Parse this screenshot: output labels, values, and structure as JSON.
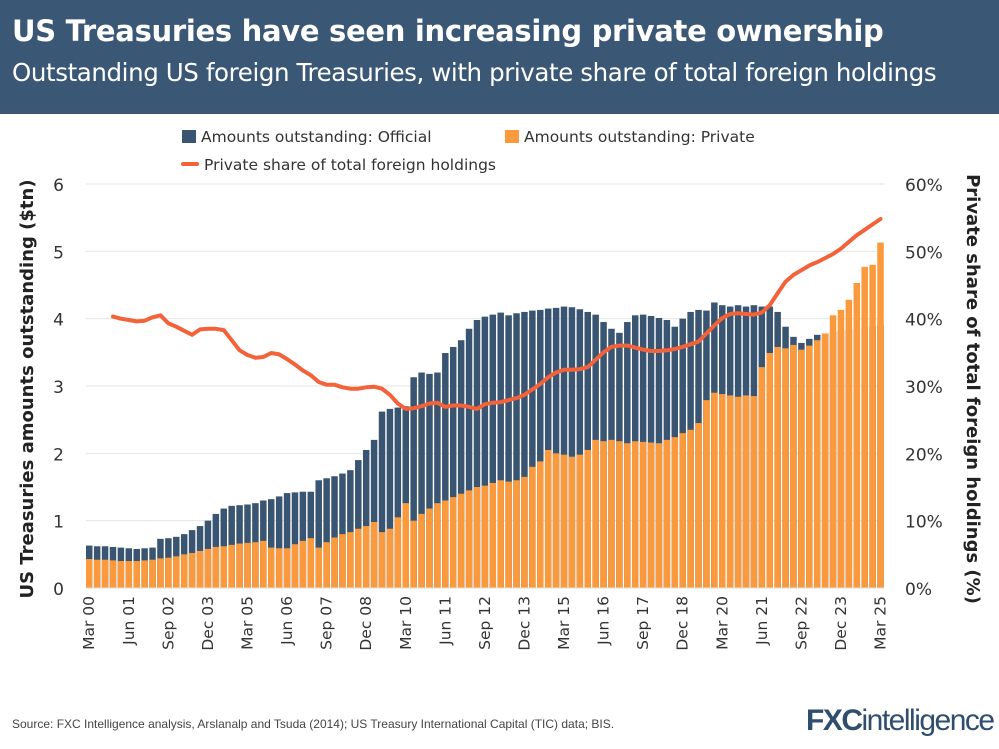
{
  "header": {
    "title": "US Treasuries have seen increasing private ownership",
    "subtitle": "Outstanding US foreign Treasuries, with private share of total foreign holdings"
  },
  "footer": {
    "source": "Source: FXC Intelligence analysis, Arslanalp and Tsuda (2014); US Treasury International Capital (TIC) data; BIS.",
    "logo": "FXCintelligence"
  },
  "colors": {
    "header_bg": "#3a5775",
    "official": "#3a5572",
    "private": "#fb9a3d",
    "share_line": "#f4623a"
  },
  "chart_data": {
    "type": "bar+line",
    "frequency": "quarterly",
    "x_start": "Mar 00",
    "x_end": "Mar 25",
    "x_tick_labels": [
      "Mar 00",
      "Jun 01",
      "Sep 02",
      "Dec 03",
      "Mar 05",
      "Jun 06",
      "Sep 07",
      "Dec 08",
      "Mar 10",
      "Jun 11",
      "Sep 12",
      "Dec 13",
      "Mar 15",
      "Jun 16",
      "Sep 17",
      "Dec 18",
      "Mar 20",
      "Jun 21",
      "Sep 22",
      "Dec 23",
      "Mar 25"
    ],
    "ylabel": "US Treasuries amounts outstanding ($tn)",
    "y2label": "Private share of total foreign holdings (%)",
    "ylim": [
      0,
      6
    ],
    "y_ticks": [
      "0",
      "1",
      "2",
      "3",
      "4",
      "5",
      "6"
    ],
    "y2lim": [
      0,
      60
    ],
    "y2_ticks": [
      "0%",
      "10%",
      "20%",
      "30%",
      "40%",
      "50%",
      "60%"
    ],
    "grid": true,
    "legend_position": "top",
    "legend": [
      "Amounts outstanding: Official",
      "Amounts outstanding: Private",
      "Private share of total foreign holdings"
    ],
    "series": [
      {
        "name": "Amounts outstanding: Official",
        "type": "bar",
        "axis": "left",
        "values": [
          0.63,
          0.62,
          0.62,
          0.61,
          0.6,
          0.59,
          0.58,
          0.59,
          0.6,
          0.73,
          0.74,
          0.76,
          0.8,
          0.86,
          0.92,
          1.0,
          1.1,
          1.18,
          1.22,
          1.23,
          1.24,
          1.26,
          1.3,
          1.32,
          1.36,
          1.41,
          1.42,
          1.43,
          1.43,
          1.6,
          1.63,
          1.66,
          1.7,
          1.75,
          1.9,
          2.05,
          2.2,
          2.62,
          2.66,
          2.68,
          2.7,
          3.13,
          3.2,
          3.18,
          3.2,
          3.49,
          3.58,
          3.68,
          3.85,
          3.98,
          4.03,
          4.06,
          4.09,
          4.05,
          4.08,
          4.1,
          4.12,
          4.13,
          4.15,
          4.16,
          4.18,
          4.17,
          4.14,
          4.1,
          4.06,
          3.95,
          3.85,
          3.79,
          3.95,
          4.05,
          4.06,
          4.04,
          4.01,
          3.98,
          3.88,
          4.0,
          4.1,
          4.13,
          4.12,
          4.24,
          4.2,
          4.18,
          4.2,
          4.18,
          4.2,
          4.18,
          4.18,
          4.1,
          3.88,
          3.73,
          3.64,
          3.7,
          3.76,
          3.78,
          3.8,
          3.82,
          3.84,
          3.85,
          3.87,
          3.88,
          3.9
        ]
      },
      {
        "name": "Amounts outstanding: Private",
        "type": "bar",
        "axis": "left",
        "values": [
          0.43,
          0.42,
          0.42,
          0.41,
          0.4,
          0.4,
          0.4,
          0.41,
          0.42,
          0.44,
          0.45,
          0.47,
          0.5,
          0.52,
          0.55,
          0.58,
          0.61,
          0.62,
          0.64,
          0.66,
          0.67,
          0.68,
          0.7,
          0.6,
          0.59,
          0.59,
          0.65,
          0.7,
          0.74,
          0.6,
          0.68,
          0.75,
          0.8,
          0.83,
          0.88,
          0.92,
          0.98,
          0.83,
          0.88,
          1.05,
          1.26,
          1.0,
          1.1,
          1.18,
          1.26,
          1.3,
          1.35,
          1.4,
          1.45,
          1.5,
          1.52,
          1.56,
          1.6,
          1.58,
          1.6,
          1.65,
          1.8,
          1.88,
          2.05,
          2.0,
          1.98,
          1.95,
          1.98,
          2.05,
          2.2,
          2.18,
          2.2,
          2.18,
          2.15,
          2.18,
          2.17,
          2.16,
          2.15,
          2.2,
          2.24,
          2.3,
          2.35,
          2.45,
          2.79,
          2.9,
          2.88,
          2.86,
          2.84,
          2.86,
          2.85,
          3.28,
          3.49,
          3.58,
          3.56,
          3.61,
          3.54,
          3.6,
          3.68,
          3.78,
          4.05,
          4.13,
          4.28,
          4.53,
          4.77,
          4.8,
          5.13
        ]
      },
      {
        "name": "Private share of total foreign holdings",
        "type": "line",
        "axis": "right",
        "values": [
          null,
          null,
          null,
          40.3,
          40.0,
          39.8,
          39.6,
          39.7,
          40.2,
          40.5,
          39.3,
          38.8,
          38.2,
          37.6,
          38.4,
          38.5,
          38.5,
          38.3,
          36.8,
          35.3,
          34.6,
          34.2,
          34.3,
          34.9,
          34.7,
          34.0,
          33.2,
          32.3,
          31.6,
          30.6,
          30.2,
          30.2,
          29.8,
          29.6,
          29.6,
          29.8,
          29.9,
          29.6,
          28.7,
          27.4,
          26.6,
          26.7,
          27.0,
          27.4,
          27.5,
          26.9,
          27.1,
          27.1,
          26.9,
          26.6,
          27.3,
          27.5,
          27.6,
          27.9,
          28.2,
          28.7,
          29.5,
          30.3,
          31.3,
          32.0,
          32.4,
          32.4,
          32.5,
          32.8,
          33.9,
          35.0,
          35.8,
          36.0,
          36.0,
          35.7,
          35.4,
          35.2,
          35.2,
          35.3,
          35.5,
          35.8,
          36.2,
          36.6,
          37.8,
          39.0,
          40.1,
          40.7,
          40.8,
          40.7,
          40.6,
          40.9,
          42.0,
          43.8,
          45.5,
          46.5,
          47.2,
          47.9,
          48.4,
          49.0,
          49.6,
          50.4,
          51.4,
          52.4,
          53.2,
          54.0,
          54.8
        ]
      }
    ]
  }
}
